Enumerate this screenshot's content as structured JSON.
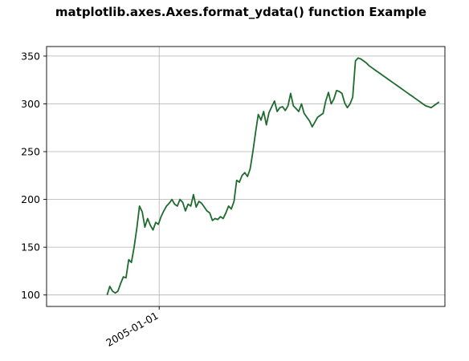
{
  "chart_data": {
    "type": "line",
    "title": "matplotlib.axes.Axes.format_ydata() function Example",
    "xlabel": "",
    "ylabel": "",
    "x_tick_labels": [
      "2005-01-01"
    ],
    "x_tick_values": [
      "2005-01-01"
    ],
    "y_ticks": [
      100,
      150,
      200,
      250,
      300,
      350
    ],
    "ylim": [
      88,
      360
    ],
    "xlim": [
      "2004-03-15",
      "2007-01-12"
    ],
    "grid": true,
    "line_color": "#1e6b2e",
    "series": [
      {
        "x": [
          "2004-08-19",
          "2004-08-26",
          "2004-09-02",
          "2004-09-09",
          "2004-09-16",
          "2004-09-23",
          "2004-09-30",
          "2004-10-07",
          "2004-10-14",
          "2004-10-21",
          "2004-10-28",
          "2004-11-04",
          "2004-11-11",
          "2004-11-18",
          "2004-11-25",
          "2004-12-02",
          "2004-12-09",
          "2004-12-16",
          "2004-12-23",
          "2004-12-30",
          "2005-01-06",
          "2005-01-13",
          "2005-01-20",
          "2005-01-27",
          "2005-02-03",
          "2005-02-10",
          "2005-02-17",
          "2005-02-24",
          "2005-03-03",
          "2005-03-10",
          "2005-03-17",
          "2005-03-24",
          "2005-03-31",
          "2005-04-07",
          "2005-04-14",
          "2005-04-21",
          "2005-04-28",
          "2005-05-05",
          "2005-05-12",
          "2005-05-19",
          "2005-05-26",
          "2005-06-02",
          "2005-06-09",
          "2005-06-16",
          "2005-06-23",
          "2005-06-30",
          "2005-07-07",
          "2005-07-14",
          "2005-07-21",
          "2005-07-28",
          "2005-08-04",
          "2005-08-11",
          "2005-08-18",
          "2005-08-25",
          "2005-09-01",
          "2005-09-08",
          "2005-09-15",
          "2005-09-22",
          "2005-09-29",
          "2005-10-06",
          "2005-10-13",
          "2005-10-20",
          "2005-10-27",
          "2005-11-03",
          "2005-11-10",
          "2005-11-17",
          "2005-11-24",
          "2005-12-01",
          "2005-12-08",
          "2005-12-15",
          "2005-12-22",
          "2005-12-29",
          "2006-01-05",
          "2006-01-12",
          "2006-01-19",
          "2006-01-26",
          "2006-02-02",
          "2006-02-09",
          "2006-02-16",
          "2006-02-23",
          "2006-03-02",
          "2006-03-09",
          "2006-03-16",
          "2006-03-23",
          "2006-03-30",
          "2006-04-06",
          "2006-04-13",
          "2006-04-20",
          "2006-04-27",
          "2006-05-04",
          "2006-05-11",
          "2006-05-18",
          "2006-05-25",
          "2006-06-01",
          "2006-06-08",
          "2006-06-15",
          "2006-06-22",
          "2006-06-29",
          "2006-07-06",
          "2006-07-13",
          "2006-07-20",
          "2006-07-27",
          "2006-08-03",
          "2006-08-10",
          "2006-08-17",
          "2006-08-24",
          "2006-08-31",
          "2006-09-07",
          "2006-09-14",
          "2006-09-21",
          "2006-09-28",
          "2006-10-05",
          "2006-10-12",
          "2006-10-19",
          "2006-10-26",
          "2006-11-02",
          "2006-11-09",
          "2006-11-16",
          "2006-11-23",
          "2006-11-30",
          "2006-12-07",
          "2006-12-14",
          "2006-12-21",
          "2006-12-28"
        ],
        "y": [
          100,
          109,
          104,
          102,
          104,
          112,
          119,
          118,
          137,
          134,
          150,
          170,
          193,
          187,
          171,
          180,
          173,
          168,
          176,
          174,
          182,
          188,
          193,
          196,
          200,
          195,
          193,
          200,
          197,
          188,
          195,
          193,
          205,
          192,
          198,
          196,
          192,
          188,
          186,
          178,
          180,
          179,
          182,
          180,
          186,
          193,
          190,
          198,
          220,
          218,
          225,
          228,
          224,
          232,
          250,
          270,
          289,
          283,
          292,
          278,
          291,
          297,
          303,
          292,
          296,
          297,
          293,
          298,
          311,
          298,
          295,
          292,
          300,
          290,
          286,
          282,
          276,
          281,
          286,
          288,
          290,
          303,
          312,
          300,
          305,
          314,
          313,
          311,
          301,
          296,
          300,
          307,
          345,
          348,
          347,
          345,
          343,
          340,
          338,
          336,
          334,
          332,
          330,
          328,
          326,
          324,
          322,
          320,
          318,
          316,
          314,
          312,
          310,
          308,
          306,
          304,
          302,
          300,
          298,
          297,
          296,
          298,
          300,
          302
        ],
        "values": [
          100,
          109,
          104,
          102,
          104,
          112,
          119,
          118,
          137,
          134,
          150,
          170,
          193,
          187,
          171,
          180,
          173,
          168,
          176,
          174,
          182,
          188,
          193,
          196,
          200,
          195,
          193,
          200,
          197,
          188,
          195,
          193,
          205,
          192,
          198,
          196,
          192,
          188,
          186,
          178,
          180,
          179,
          182,
          180,
          186,
          193,
          190,
          198,
          220,
          218,
          225,
          228,
          224,
          232,
          250,
          270,
          289,
          283,
          292,
          278,
          291,
          297,
          303,
          292,
          296,
          297,
          293,
          298,
          311,
          298,
          295,
          292,
          300,
          290,
          286,
          282,
          276,
          281,
          286,
          288,
          290,
          303,
          312,
          300,
          305,
          314,
          313,
          311,
          301,
          296,
          300,
          307,
          345,
          348,
          347,
          345,
          343,
          340,
          338,
          336,
          334,
          332,
          330,
          328,
          326,
          324,
          322,
          320,
          318,
          316,
          314,
          312,
          310,
          308,
          306,
          304,
          302,
          300,
          298,
          297,
          296,
          298,
          300,
          302
        ]
      }
    ]
  }
}
